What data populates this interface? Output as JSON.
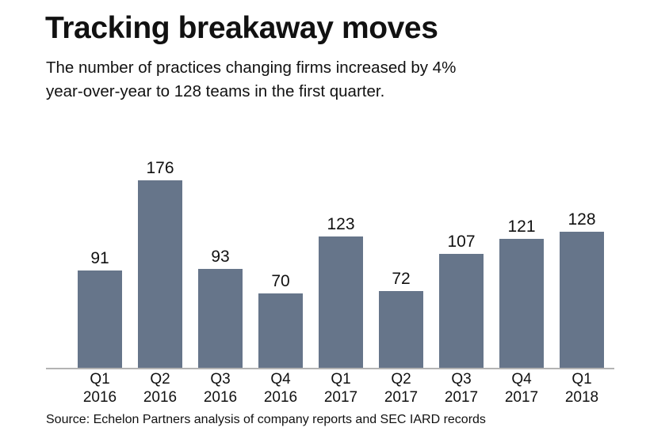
{
  "header": {
    "title": "Tracking breakaway moves",
    "subtitle_line1": "The number of practices changing firms increased by 4%",
    "subtitle_line2": "year-over-year to 128 teams in the first quarter."
  },
  "chart_data": {
    "type": "bar",
    "title": "Tracking breakaway moves",
    "subtitle": "The number of practices changing firms increased by 4% year-over-year to 128 teams in the first quarter.",
    "categories": [
      "Q1 2016",
      "Q2 2016",
      "Q3 2016",
      "Q4 2016",
      "Q1 2017",
      "Q2 2017",
      "Q3 2017",
      "Q4 2017",
      "Q1 2018"
    ],
    "values": [
      91,
      176,
      93,
      70,
      123,
      72,
      107,
      121,
      128
    ],
    "xlabel": "",
    "ylabel": "",
    "ylim": [
      0,
      180
    ],
    "grid": false,
    "legend_position": "none",
    "value_labels": true,
    "bar_color": "#66758a",
    "axis_line_color": "#b3b3b3",
    "text_color": "#111111"
  },
  "footer": {
    "source": "Source: Echelon Partners analysis of company reports and SEC IARD records"
  }
}
